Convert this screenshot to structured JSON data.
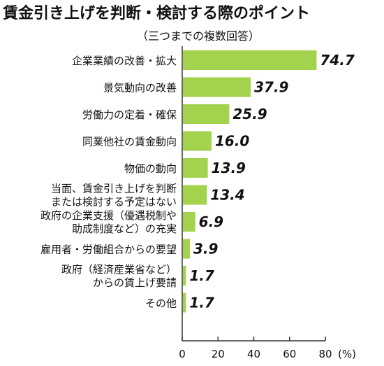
{
  "chart_data": {
    "type": "bar",
    "orientation": "horizontal",
    "title": "賃金引き上げを判断・検討する際のポイント",
    "subtitle": "（三つまでの複数回答）",
    "categories": [
      [
        "企業業績の改善・拡大"
      ],
      [
        "景気動向の改善"
      ],
      [
        "労働力の定着・確保"
      ],
      [
        "同業他社の賃金動向"
      ],
      [
        "物価の動向"
      ],
      [
        "当面、賃金引き上げを判断",
        "または検討する予定はない"
      ],
      [
        "政府の企業支援（優遇税制や",
        "助成制度など）の充実"
      ],
      [
        "雇用者・労働組合からの要望"
      ],
      [
        "政府（経済産業省など）",
        "からの賃上げ要請"
      ],
      [
        "その他"
      ]
    ],
    "values": [
      74.7,
      37.9,
      25.9,
      16.0,
      13.9,
      13.4,
      6.9,
      3.9,
      1.7,
      1.7
    ],
    "value_labels": [
      "74.7",
      "37.9",
      "25.9",
      "16.0",
      "13.9",
      "13.4",
      "6.9",
      "3.9",
      "1.7",
      "1.7"
    ],
    "xlim": [
      0,
      80
    ],
    "xticks": [
      0,
      20,
      40,
      60,
      80
    ],
    "xtick_labels": [
      "0",
      "20",
      "40",
      "60",
      "80"
    ],
    "xunit": "(%)",
    "grid": false,
    "bar_color": "#a3d24d",
    "axis_color": "#333333"
  }
}
